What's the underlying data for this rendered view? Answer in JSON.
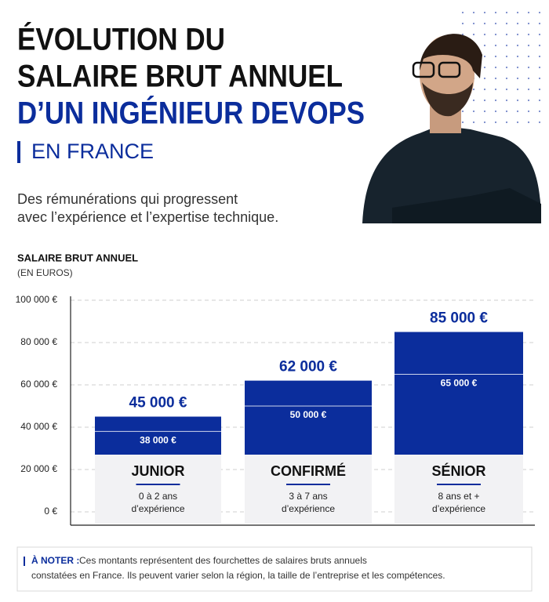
{
  "header": {
    "title_lines": [
      "ÉVOLUTION DU",
      "SALAIRE BRUT ANNUEL",
      "D’UN INGÉNIEUR DEVOPS"
    ],
    "subtitle": "EN FRANCE",
    "description_lines": [
      "Des rémunérations qui progressent",
      "avec l’expérience et l’expertise technique."
    ]
  },
  "chart_data": {
    "type": "bar",
    "title": "SALAIRE BRUT ANNUEL",
    "subtitle": "(EN EUROS)",
    "categories": [
      "JUNIOR",
      "CONFIRMÉ",
      "SÉNIOR"
    ],
    "category_notes": [
      [
        "0 à 2 ans",
        "d’expérience"
      ],
      [
        "3 à 7 ans",
        "d’expérience"
      ],
      [
        "8 ans et +",
        "d’expérience"
      ]
    ],
    "series": [
      {
        "color": "#0b2d9c",
        "values": [
          45000,
          62000,
          85000
        ],
        "value_labels": [
          "45 000 €",
          "62 000 €",
          "85 000 €"
        ]
      },
      {
        "color": "#ffffff",
        "values": [
          38000,
          50000,
          65000
        ],
        "value_labels": [
          "38 000 €",
          "50 000 €",
          "65 000 €"
        ]
      }
    ],
    "ylim": [
      0,
      100000
    ],
    "yticks": [
      {
        "value": 0,
        "label": "0 €"
      },
      {
        "value": 20000,
        "label": "20 000 €"
      },
      {
        "value": 40000,
        "label": "40 000 €"
      },
      {
        "value": 60000,
        "label": "60 000 €"
      },
      {
        "value": 80000,
        "label": "80 000 €"
      },
      {
        "value": 100000,
        "label": "100 000 €"
      }
    ],
    "grid": true
  },
  "note": {
    "label": "À NOTER :",
    "text_lines": [
      "Ces montants représentent des fourchettes de salaires bruts annuels",
      "constatées en France. Ils peuvent varier selon la région, la taille de l’entreprise et les compétences."
    ]
  }
}
